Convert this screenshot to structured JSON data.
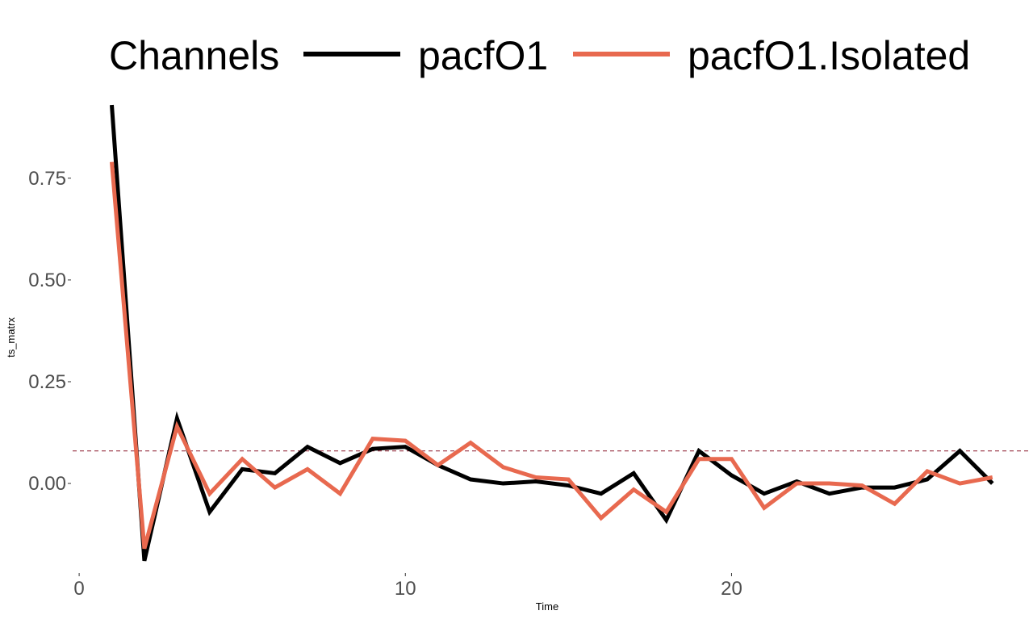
{
  "chart_data": {
    "type": "line",
    "title": "",
    "xlabel": "Time",
    "ylabel": "ts_matrx",
    "xlim": [
      -0.2,
      28.5
    ],
    "ylim": [
      -0.22,
      0.94
    ],
    "x_ticks": [
      0,
      10,
      20
    ],
    "x_tick_labels": [
      "0",
      "10",
      "20"
    ],
    "y_ticks": [
      0.0,
      0.25,
      0.5,
      0.75
    ],
    "y_tick_labels": [
      "0.00",
      "0.25",
      "0.50",
      "0.75"
    ],
    "grid": false,
    "legend": {
      "title": "Channels",
      "position": "top"
    },
    "reference_line": {
      "y": 0.08,
      "style": "dashed",
      "color": "#8b1a2b"
    },
    "x": [
      1,
      2,
      3,
      4,
      5,
      6,
      7,
      8,
      9,
      10,
      11,
      12,
      13,
      14,
      15,
      16,
      17,
      18,
      19,
      20,
      21,
      22,
      23,
      24,
      25,
      26,
      27,
      28
    ],
    "series": [
      {
        "name": "pacfO1",
        "color": "#000000",
        "values": [
          0.93,
          -0.19,
          0.16,
          -0.07,
          0.035,
          0.025,
          0.09,
          0.05,
          0.085,
          0.09,
          0.045,
          0.01,
          0.0,
          0.005,
          -0.005,
          -0.025,
          0.025,
          -0.09,
          0.08,
          0.02,
          -0.025,
          0.005,
          -0.025,
          -0.01,
          -0.01,
          0.01,
          0.08,
          0.0
        ]
      },
      {
        "name": "pacfO1.Isolated",
        "color": "#e8694f",
        "values": [
          0.79,
          -0.16,
          0.14,
          -0.025,
          0.06,
          -0.01,
          0.035,
          -0.025,
          0.11,
          0.105,
          0.045,
          0.1,
          0.04,
          0.015,
          0.01,
          -0.085,
          -0.015,
          -0.07,
          0.06,
          0.06,
          -0.06,
          0.0,
          0.0,
          -0.005,
          -0.05,
          0.03,
          0.0,
          0.015
        ]
      }
    ]
  }
}
